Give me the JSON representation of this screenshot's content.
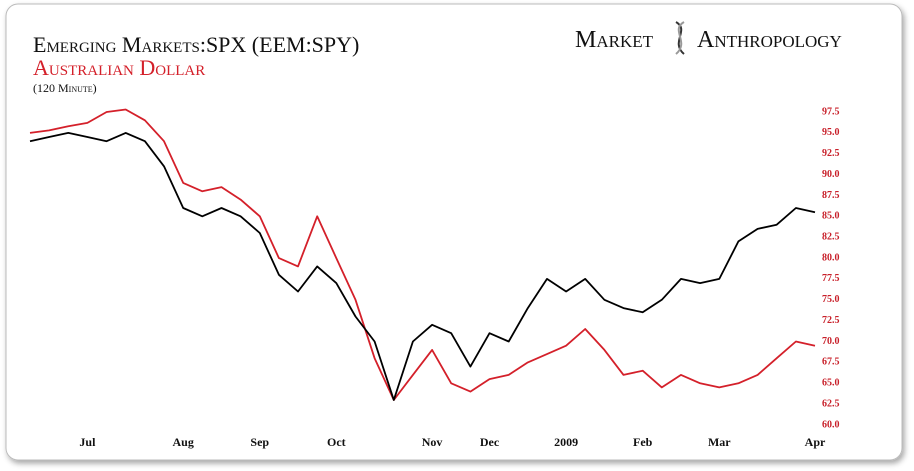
{
  "chart_data": {
    "type": "line",
    "subtitle": "(120 Minute)",
    "logo": [
      "Market",
      "Anthropology"
    ],
    "categories": [
      null,
      null,
      null,
      "Jul",
      null,
      null,
      null,
      null,
      "Aug",
      null,
      null,
      null,
      "Sep",
      null,
      null,
      null,
      "Oct",
      null,
      null,
      null,
      null,
      "Nov",
      null,
      null,
      "Dec",
      null,
      null,
      null,
      "2009",
      null,
      null,
      null,
      "Feb",
      null,
      null,
      null,
      "Mar",
      null,
      null,
      null,
      null,
      "Apr"
    ],
    "series": [
      {
        "name": "Emerging Markets:SPX (EEM:SPY)",
        "color": "#000000",
        "values": [
          94,
          94.5,
          95,
          94.5,
          94,
          95,
          94,
          91,
          86,
          85,
          86,
          85,
          83,
          78,
          76,
          79,
          77,
          73,
          70,
          63,
          70,
          72,
          71,
          67,
          71,
          70,
          74,
          77.5,
          76,
          77.5,
          75,
          74,
          73.5,
          75,
          77.5,
          77,
          77.5,
          82,
          83.5,
          84,
          86,
          85.5
        ]
      },
      {
        "name": "Australian Dollar",
        "color": "#d4202a",
        "values": [
          95,
          95.3,
          95.8,
          96.2,
          97.5,
          97.8,
          96.5,
          94,
          89,
          88,
          88.5,
          87,
          85,
          80,
          79,
          85,
          80,
          75,
          68,
          63,
          66,
          69,
          65,
          64,
          65.5,
          66,
          67.5,
          68.5,
          69.5,
          71.5,
          69,
          66,
          66.5,
          64.5,
          66,
          65,
          64.5,
          65,
          66,
          68,
          70,
          69.5
        ]
      }
    ],
    "ylim": [
      60,
      97.5
    ],
    "yticks": [
      {
        "value": 60,
        "label": "60.0"
      },
      {
        "value": 62.5,
        "label": "62.5"
      },
      {
        "value": 65,
        "label": "65.0"
      },
      {
        "value": 67.5,
        "label": "67.5"
      },
      {
        "value": 70,
        "label": "70.0"
      },
      {
        "value": 72.5,
        "label": "72.5"
      },
      {
        "value": 75,
        "label": "75.0"
      },
      {
        "value": 77.5,
        "label": "77.5"
      },
      {
        "value": 80,
        "label": "80.0"
      },
      {
        "value": 82.5,
        "label": "82.5"
      },
      {
        "value": 85,
        "label": "85.0"
      },
      {
        "value": 87.5,
        "label": "87.5"
      },
      {
        "value": 90,
        "label": "90.0"
      },
      {
        "value": 92.5,
        "label": "92.5"
      },
      {
        "value": 95,
        "label": "95.0"
      },
      {
        "value": 97.5,
        "label": "97.5"
      }
    ],
    "grid": false
  }
}
